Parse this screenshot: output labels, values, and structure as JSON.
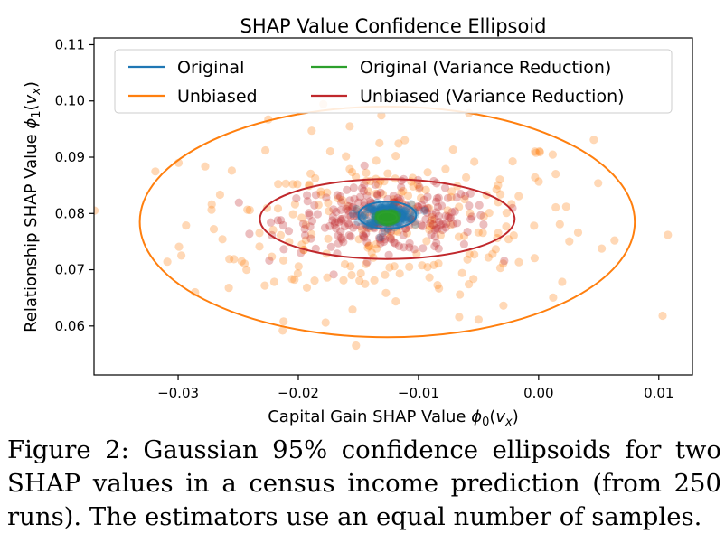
{
  "chart_data": {
    "type": "scatter",
    "title": "SHAP Value Confidence Ellipsoid",
    "xlabel": "Capital Gain SHAP Value φ0(vx)",
    "ylabel": "Relationship SHAP Value φ1(vx)",
    "xlim": [
      -0.037,
      0.0128
    ],
    "ylim": [
      0.0513,
      0.1112
    ],
    "xticks": [
      -0.03,
      -0.02,
      -0.01,
      0.0,
      0.01
    ],
    "xtick_labels": [
      "−0.03",
      "−0.02",
      "−0.01",
      "0.00",
      "0.01"
    ],
    "yticks": [
      0.06,
      0.07,
      0.08,
      0.09,
      0.1,
      0.11
    ],
    "ytick_labels": [
      "0.06",
      "0.07",
      "0.08",
      "0.09",
      "0.10",
      "0.11"
    ],
    "grid": false,
    "legend_position": "top",
    "series": [
      {
        "name": "Original",
        "color": "#1f77b4",
        "mean": [
          -0.0126,
          0.0797
        ],
        "semi_axes": [
          0.0024,
          0.0024
        ],
        "samples": 250
      },
      {
        "name": "Unbiased",
        "color": "#ff7f0e",
        "mean": [
          -0.0126,
          0.0785
        ],
        "semi_axes": [
          0.0206,
          0.0205
        ],
        "samples": 250
      },
      {
        "name": "Original (Variance Reduction)",
        "color": "#2ca02c",
        "mean": [
          -0.0126,
          0.0793
        ],
        "semi_axes": [
          0.0008,
          0.0009
        ],
        "samples": 250
      },
      {
        "name": "Unbiased (Variance Reduction)",
        "color": "#c0282c",
        "mean": [
          -0.0126,
          0.079
        ],
        "semi_axes": [
          0.0106,
          0.0071
        ],
        "samples": 250
      }
    ]
  },
  "caption": "Figure 2: Gaussian 95% confidence ellipsoids for two SHAP values in a census income prediction (from 250 runs). The estimators use an equal number of samples."
}
